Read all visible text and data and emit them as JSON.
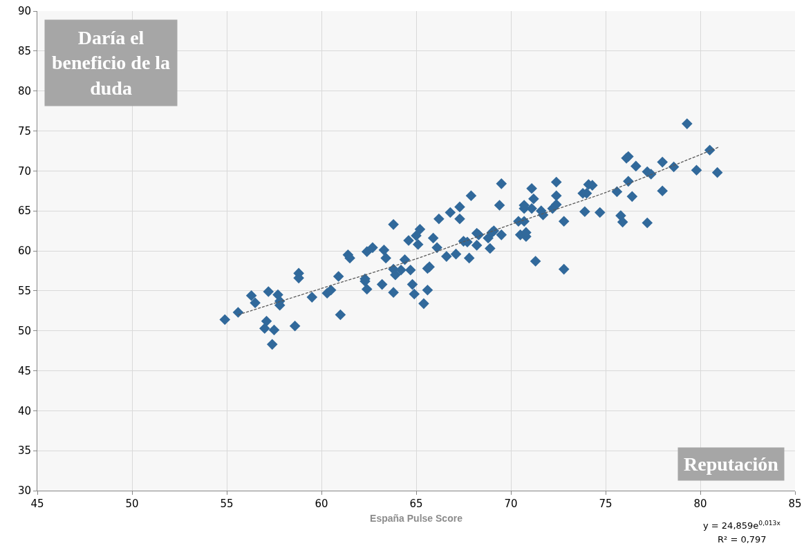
{
  "chart_data": {
    "type": "scatter",
    "xlabel": "España Pulse Score",
    "ylabel": "Daría el beneficio de la duda",
    "annotations": [
      "Reputación",
      "y = 24,859e$^{0,013x}$",
      "R² = 0,797"
    ],
    "xlim": [
      45,
      85
    ],
    "xticks": [
      45,
      50,
      55,
      60,
      65,
      70,
      75,
      80,
      85
    ],
    "ylim": [
      30,
      90
    ],
    "yticks": [
      30,
      35,
      40,
      45,
      50,
      55,
      60,
      65,
      70,
      75,
      80,
      85,
      90
    ],
    "grid": true,
    "marker": "diamond",
    "series": [
      {
        "color": "#31699b",
        "x": [
          54.9,
          55.6,
          56.3,
          56.5,
          57.2,
          57.1,
          57.0,
          57.5,
          57.4,
          57.7,
          57.8,
          57.8,
          58.6,
          58.8,
          58.8,
          59.5,
          60.3,
          60.5,
          60.9,
          61.0,
          61.4,
          61.5,
          62.3,
          62.3,
          62.4,
          62.4,
          62.7,
          63.2,
          63.3,
          63.4,
          63.8,
          63.8,
          63.9,
          63.8,
          64.2,
          64.4,
          64.6,
          64.7,
          64.8,
          64.9,
          65.0,
          65.1,
          65.2,
          65.4,
          65.6,
          65.6,
          65.7,
          65.9,
          66.1,
          66.2,
          66.6,
          66.8,
          67.1,
          67.3,
          67.3,
          67.5,
          67.7,
          67.8,
          67.9,
          68.2,
          68.2,
          68.3,
          68.8,
          68.9,
          69.0,
          69.1,
          69.4,
          69.5,
          69.5,
          70.4,
          70.5,
          70.7,
          70.7,
          70.7,
          70.8,
          70.8,
          71.1,
          71.1,
          71.2,
          71.3,
          71.6,
          71.7,
          72.2,
          72.4,
          72.4,
          72.4,
          72.8,
          72.8,
          73.8,
          73.9,
          74.0,
          74.1,
          74.3,
          74.7,
          75.6,
          75.8,
          75.9,
          76.1,
          76.2,
          76.2,
          76.4,
          76.6,
          77.2,
          77.2,
          77.4,
          78.0,
          78.0,
          78.6,
          79.3,
          79.8,
          80.5,
          80.9
        ],
        "values": [
          51.4,
          52.3,
          54.4,
          53.5,
          54.9,
          51.2,
          50.3,
          50.1,
          48.3,
          54.5,
          53.7,
          53.2,
          50.6,
          57.2,
          56.6,
          54.2,
          54.7,
          55.1,
          56.8,
          52.0,
          59.5,
          59.1,
          56.5,
          56.2,
          55.2,
          59.9,
          60.4,
          55.8,
          60.1,
          59.1,
          63.3,
          57.7,
          57.0,
          54.8,
          57.6,
          58.9,
          61.3,
          57.6,
          55.8,
          54.6,
          61.9,
          60.8,
          62.7,
          53.4,
          55.1,
          57.8,
          58.0,
          61.6,
          60.4,
          64.0,
          59.3,
          64.8,
          59.6,
          64.0,
          65.5,
          61.2,
          61.1,
          59.1,
          66.9,
          62.2,
          60.7,
          62.0,
          61.6,
          60.3,
          62.3,
          62.5,
          65.7,
          62.0,
          68.4,
          63.7,
          62.0,
          63.7,
          65.3,
          65.7,
          61.8,
          62.3,
          67.8,
          65.3,
          66.5,
          58.7,
          65.0,
          64.5,
          65.3,
          68.6,
          66.9,
          65.8,
          57.7,
          63.7,
          67.2,
          64.9,
          67.2,
          68.3,
          68.2,
          64.8,
          67.4,
          64.4,
          63.6,
          71.6,
          71.8,
          68.7,
          66.8,
          70.6,
          69.9,
          63.5,
          69.6,
          71.1,
          67.5,
          70.5,
          75.9,
          70.1,
          72.6,
          69.8
        ]
      },
      {
        "type": "line",
        "color": "#595959",
        "line_style": "dashed",
        "marker": "none",
        "x": [
          55.6,
          60,
          65,
          70,
          75,
          81.0
        ],
        "values": [
          52.0,
          55.3,
          59.0,
          63.3,
          67.3,
          73.0
        ]
      }
    ]
  }
}
